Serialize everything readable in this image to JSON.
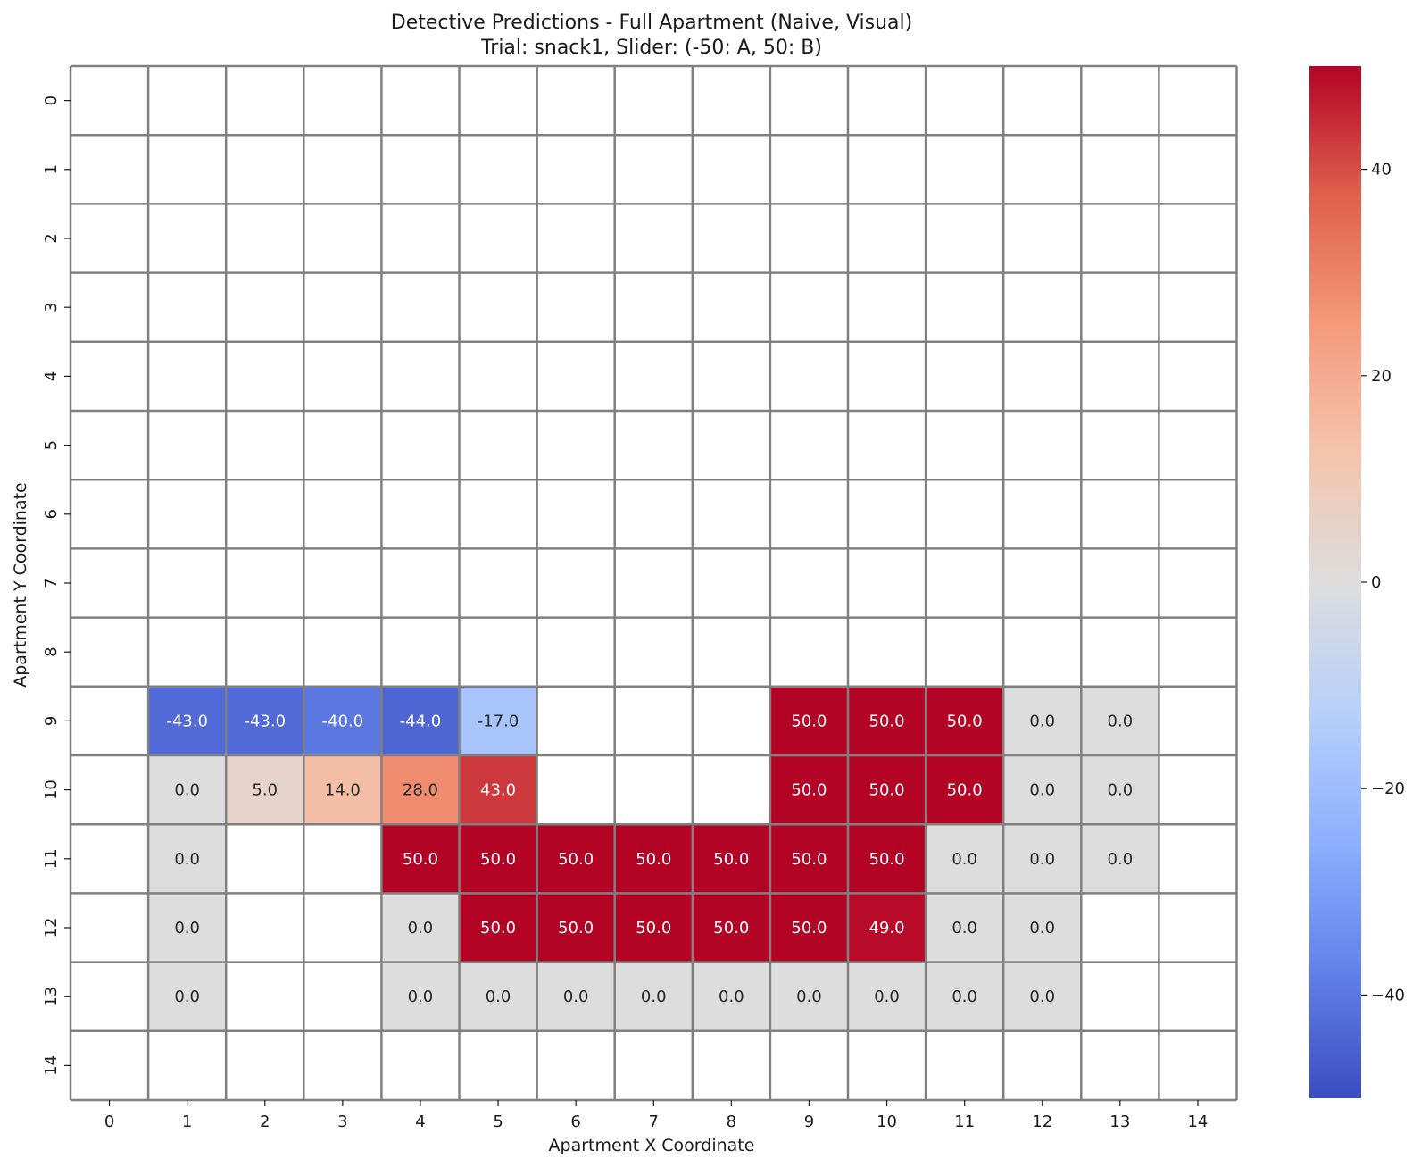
{
  "chart_data": {
    "type": "heatmap",
    "title": "Detective Predictions - Full Apartment (Naive, Visual)",
    "subtitle": "Trial: snack1, Slider: (-50: A, 50: B)",
    "xlabel": "Apartment X Coordinate",
    "ylabel": "Apartment Y Coordinate",
    "x_ticks": [
      "0",
      "1",
      "2",
      "3",
      "4",
      "5",
      "6",
      "7",
      "8",
      "9",
      "10",
      "11",
      "12",
      "13",
      "14"
    ],
    "y_ticks": [
      "0",
      "1",
      "2",
      "3",
      "4",
      "5",
      "6",
      "7",
      "8",
      "9",
      "10",
      "11",
      "12",
      "13",
      "14"
    ],
    "colormap": "coolwarm",
    "vmin": -50,
    "vmax": 50,
    "colorbar_ticks": [
      -40,
      -20,
      0,
      20,
      40
    ],
    "colorbar_tick_labels": [
      "−40",
      "−20",
      "0",
      "20",
      "40"
    ],
    "grid": true,
    "grid_color": "#808080",
    "empty_color": "#ffffff",
    "cells": [
      {
        "x": 1,
        "y": 9,
        "value": -43.0,
        "label": "-43.0"
      },
      {
        "x": 2,
        "y": 9,
        "value": -43.0,
        "label": "-43.0"
      },
      {
        "x": 3,
        "y": 9,
        "value": -40.0,
        "label": "-40.0"
      },
      {
        "x": 4,
        "y": 9,
        "value": -44.0,
        "label": "-44.0"
      },
      {
        "x": 5,
        "y": 9,
        "value": -17.0,
        "label": "-17.0"
      },
      {
        "x": 9,
        "y": 9,
        "value": 50.0,
        "label": "50.0"
      },
      {
        "x": 10,
        "y": 9,
        "value": 50.0,
        "label": "50.0"
      },
      {
        "x": 11,
        "y": 9,
        "value": 50.0,
        "label": "50.0"
      },
      {
        "x": 12,
        "y": 9,
        "value": 0.0,
        "label": "0.0"
      },
      {
        "x": 13,
        "y": 9,
        "value": 0.0,
        "label": "0.0"
      },
      {
        "x": 1,
        "y": 10,
        "value": 0.0,
        "label": "0.0"
      },
      {
        "x": 2,
        "y": 10,
        "value": 5.0,
        "label": "5.0"
      },
      {
        "x": 3,
        "y": 10,
        "value": 14.0,
        "label": "14.0"
      },
      {
        "x": 4,
        "y": 10,
        "value": 28.0,
        "label": "28.0"
      },
      {
        "x": 5,
        "y": 10,
        "value": 43.0,
        "label": "43.0"
      },
      {
        "x": 9,
        "y": 10,
        "value": 50.0,
        "label": "50.0"
      },
      {
        "x": 10,
        "y": 10,
        "value": 50.0,
        "label": "50.0"
      },
      {
        "x": 11,
        "y": 10,
        "value": 50.0,
        "label": "50.0"
      },
      {
        "x": 12,
        "y": 10,
        "value": 0.0,
        "label": "0.0"
      },
      {
        "x": 13,
        "y": 10,
        "value": 0.0,
        "label": "0.0"
      },
      {
        "x": 1,
        "y": 11,
        "value": 0.0,
        "label": "0.0"
      },
      {
        "x": 4,
        "y": 11,
        "value": 50.0,
        "label": "50.0"
      },
      {
        "x": 5,
        "y": 11,
        "value": 50.0,
        "label": "50.0"
      },
      {
        "x": 6,
        "y": 11,
        "value": 50.0,
        "label": "50.0"
      },
      {
        "x": 7,
        "y": 11,
        "value": 50.0,
        "label": "50.0"
      },
      {
        "x": 8,
        "y": 11,
        "value": 50.0,
        "label": "50.0"
      },
      {
        "x": 9,
        "y": 11,
        "value": 50.0,
        "label": "50.0"
      },
      {
        "x": 10,
        "y": 11,
        "value": 50.0,
        "label": "50.0"
      },
      {
        "x": 11,
        "y": 11,
        "value": 0.0,
        "label": "0.0"
      },
      {
        "x": 12,
        "y": 11,
        "value": 0.0,
        "label": "0.0"
      },
      {
        "x": 13,
        "y": 11,
        "value": 0.0,
        "label": "0.0"
      },
      {
        "x": 1,
        "y": 12,
        "value": 0.0,
        "label": "0.0"
      },
      {
        "x": 4,
        "y": 12,
        "value": 0.0,
        "label": "0.0"
      },
      {
        "x": 5,
        "y": 12,
        "value": 50.0,
        "label": "50.0"
      },
      {
        "x": 6,
        "y": 12,
        "value": 50.0,
        "label": "50.0"
      },
      {
        "x": 7,
        "y": 12,
        "value": 50.0,
        "label": "50.0"
      },
      {
        "x": 8,
        "y": 12,
        "value": 50.0,
        "label": "50.0"
      },
      {
        "x": 9,
        "y": 12,
        "value": 50.0,
        "label": "50.0"
      },
      {
        "x": 10,
        "y": 12,
        "value": 49.0,
        "label": "49.0"
      },
      {
        "x": 11,
        "y": 12,
        "value": 0.0,
        "label": "0.0"
      },
      {
        "x": 12,
        "y": 12,
        "value": 0.0,
        "label": "0.0"
      },
      {
        "x": 1,
        "y": 13,
        "value": 0.0,
        "label": "0.0"
      },
      {
        "x": 4,
        "y": 13,
        "value": 0.0,
        "label": "0.0"
      },
      {
        "x": 5,
        "y": 13,
        "value": 0.0,
        "label": "0.0"
      },
      {
        "x": 6,
        "y": 13,
        "value": 0.0,
        "label": "0.0"
      },
      {
        "x": 7,
        "y": 13,
        "value": 0.0,
        "label": "0.0"
      },
      {
        "x": 8,
        "y": 13,
        "value": 0.0,
        "label": "0.0"
      },
      {
        "x": 9,
        "y": 13,
        "value": 0.0,
        "label": "0.0"
      },
      {
        "x": 10,
        "y": 13,
        "value": 0.0,
        "label": "0.0"
      },
      {
        "x": 11,
        "y": 13,
        "value": 0.0,
        "label": "0.0"
      },
      {
        "x": 12,
        "y": 13,
        "value": 0.0,
        "label": "0.0"
      }
    ]
  }
}
